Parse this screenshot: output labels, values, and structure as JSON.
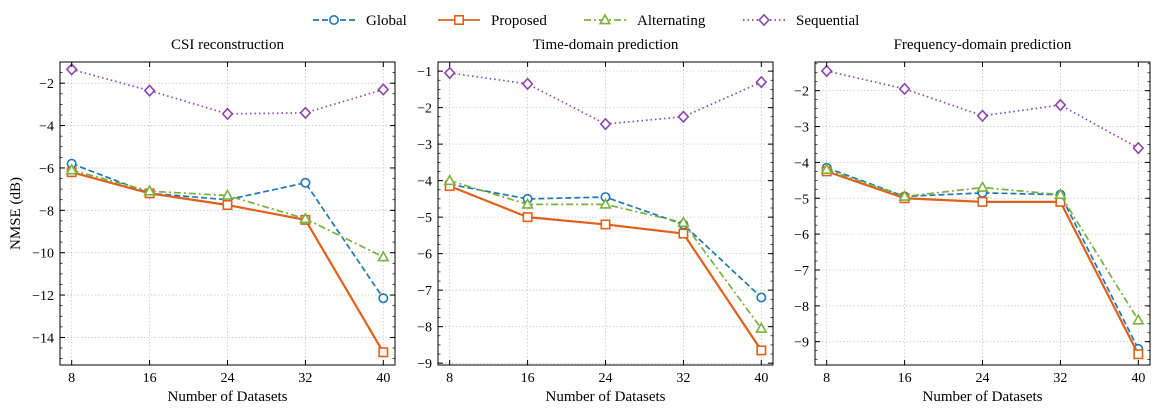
{
  "legend": [
    {
      "name": "Global",
      "color": "#1f77b4",
      "dash": "dashed",
      "marker": "circle"
    },
    {
      "name": "Proposed",
      "color": "#e0601c",
      "dash": "solid",
      "marker": "square"
    },
    {
      "name": "Alternating",
      "color": "#7ab03c",
      "dash": "dashdot",
      "marker": "triangle"
    },
    {
      "name": "Sequential",
      "color": "#8e44ad",
      "dash": "dotted",
      "marker": "diamond"
    }
  ],
  "chart_data": [
    {
      "type": "line",
      "title": "CSI reconstruction",
      "xlabel": "Number of Datasets",
      "ylabel": "NMSE (dB)",
      "x": [
        8,
        16,
        24,
        32,
        40
      ],
      "xticks": [
        "8",
        "16",
        "24",
        "32",
        "40"
      ],
      "ylim": [
        -15.3,
        -1.0
      ],
      "yticks": [
        -14,
        -12,
        -10,
        -8,
        -6,
        -4,
        -2
      ],
      "yticklabels": [
        "−14",
        "−12",
        "−10",
        "−8",
        "−6",
        "−4",
        "−2"
      ],
      "series": [
        {
          "name": "Global",
          "values": [
            -5.8,
            -7.2,
            -7.5,
            -6.7,
            -12.15
          ]
        },
        {
          "name": "Proposed",
          "values": [
            -6.2,
            -7.2,
            -7.75,
            -8.45,
            -14.7
          ]
        },
        {
          "name": "Alternating",
          "values": [
            -6.1,
            -7.1,
            -7.3,
            -8.4,
            -10.2
          ]
        },
        {
          "name": "Sequential",
          "values": [
            -1.35,
            -2.35,
            -3.45,
            -3.4,
            -2.3
          ]
        }
      ]
    },
    {
      "type": "line",
      "title": "Time-domain prediction",
      "xlabel": "Number of Datasets",
      "ylabel": "",
      "x": [
        8,
        16,
        24,
        32,
        40
      ],
      "xticks": [
        "8",
        "16",
        "24",
        "32",
        "40"
      ],
      "ylim": [
        -9.05,
        -0.75
      ],
      "yticks": [
        -9,
        -8,
        -7,
        -6,
        -5,
        -4,
        -3,
        -2,
        -1
      ],
      "yticklabels": [
        "−9",
        "−8",
        "−7",
        "−6",
        "−5",
        "−4",
        "−3",
        "−2",
        "−1"
      ],
      "series": [
        {
          "name": "Global",
          "values": [
            -4.1,
            -4.5,
            -4.45,
            -5.2,
            -7.2
          ]
        },
        {
          "name": "Proposed",
          "values": [
            -4.15,
            -5.0,
            -5.2,
            -5.45,
            -8.65
          ]
        },
        {
          "name": "Alternating",
          "values": [
            -4.0,
            -4.65,
            -4.65,
            -5.15,
            -8.05
          ]
        },
        {
          "name": "Sequential",
          "values": [
            -1.05,
            -1.35,
            -2.45,
            -2.25,
            -1.3
          ]
        }
      ]
    },
    {
      "type": "line",
      "title": "Frequency-domain prediction",
      "xlabel": "Number of Datasets",
      "ylabel": "",
      "x": [
        8,
        16,
        24,
        32,
        40
      ],
      "xticks": [
        "8",
        "16",
        "24",
        "32",
        "40"
      ],
      "ylim": [
        -9.65,
        -1.2
      ],
      "yticks": [
        -9,
        -8,
        -7,
        -6,
        -5,
        -4,
        -3,
        -2
      ],
      "yticklabels": [
        "−9",
        "−8",
        "−7",
        "−6",
        "−5",
        "−4",
        "−3",
        "−2"
      ],
      "series": [
        {
          "name": "Global",
          "values": [
            -4.15,
            -4.95,
            -4.85,
            -4.9,
            -9.2
          ]
        },
        {
          "name": "Proposed",
          "values": [
            -4.25,
            -5.0,
            -5.1,
            -5.1,
            -9.35
          ]
        },
        {
          "name": "Alternating",
          "values": [
            -4.2,
            -4.95,
            -4.7,
            -4.9,
            -8.4
          ]
        },
        {
          "name": "Sequential",
          "values": [
            -1.45,
            -1.95,
            -2.7,
            -2.4,
            -3.6
          ]
        }
      ]
    }
  ]
}
